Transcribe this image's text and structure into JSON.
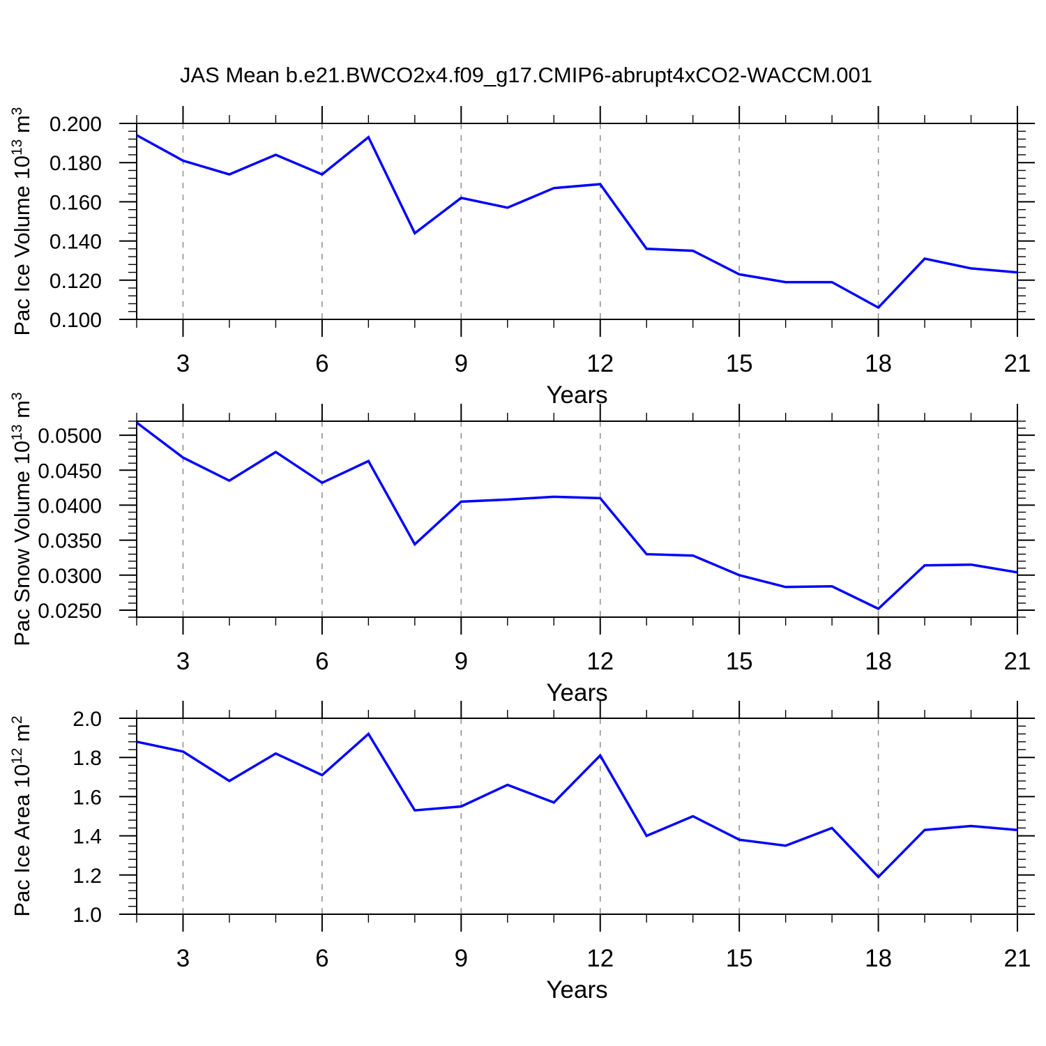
{
  "title": "JAS Mean b.e21.BWCO2x4.f09_g17.CMIP6-abrupt4xCO2-WACCM.001",
  "figure": {
    "background_color": "#ffffff",
    "line_color": "#0000ff",
    "frame_color": "#000000",
    "grid_color": "#8c8c8c",
    "grid_style": "vertical-dashed"
  },
  "chart_data": [
    {
      "type": "line",
      "ylabel_text": "Pac Ice Volume 10^13 m^3",
      "ylabel_parts": [
        {
          "text": "Pac Ice Volume 10",
          "sup": false
        },
        {
          "text": "13",
          "sup": true
        },
        {
          "text": " m",
          "sup": false
        },
        {
          "text": "3",
          "sup": true
        }
      ],
      "xlabel": "Years",
      "x": [
        2,
        3,
        4,
        5,
        6,
        7,
        8,
        9,
        10,
        11,
        12,
        13,
        14,
        15,
        16,
        17,
        18,
        19,
        20,
        21
      ],
      "values": [
        0.194,
        0.181,
        0.174,
        0.184,
        0.174,
        0.193,
        0.144,
        0.162,
        0.157,
        0.167,
        0.169,
        0.136,
        0.135,
        0.123,
        0.119,
        0.119,
        0.106,
        0.131,
        0.126,
        0.124
      ],
      "xlim": [
        2,
        21
      ],
      "ylim": [
        0.1,
        0.2
      ],
      "xtick_values": [
        3,
        6,
        9,
        12,
        15,
        18,
        21
      ],
      "xtick_labels": [
        "3",
        "6",
        "9",
        "12",
        "15",
        "18",
        "21"
      ],
      "x_minor_step": 1,
      "ytick_values": [
        0.1,
        0.12,
        0.14,
        0.16,
        0.18,
        0.2
      ],
      "ytick_labels": [
        "0.100",
        "0.120",
        "0.140",
        "0.160",
        "0.180",
        "0.200"
      ],
      "y_minor_step": 0.004,
      "grid_x": [
        3,
        6,
        9,
        12,
        15,
        18
      ],
      "line_color": "#0000ff",
      "legend": null
    },
    {
      "type": "line",
      "ylabel_text": "Pac Snow Volume 10^13 m^3",
      "ylabel_parts": [
        {
          "text": "Pac Snow Volume 10",
          "sup": false
        },
        {
          "text": "13",
          "sup": true
        },
        {
          "text": " m",
          "sup": false
        },
        {
          "text": "3",
          "sup": true
        }
      ],
      "xlabel": "Years",
      "x": [
        2,
        3,
        4,
        5,
        6,
        7,
        8,
        9,
        10,
        11,
        12,
        13,
        14,
        15,
        16,
        17,
        18,
        19,
        20,
        21
      ],
      "values": [
        0.0518,
        0.0468,
        0.0435,
        0.0476,
        0.0432,
        0.0463,
        0.0344,
        0.0405,
        0.0408,
        0.0412,
        0.041,
        0.033,
        0.0328,
        0.03,
        0.0283,
        0.0284,
        0.0252,
        0.0314,
        0.0315,
        0.0304
      ],
      "xlim": [
        2,
        21
      ],
      "ylim": [
        0.024,
        0.052
      ],
      "xtick_values": [
        3,
        6,
        9,
        12,
        15,
        18,
        21
      ],
      "xtick_labels": [
        "3",
        "6",
        "9",
        "12",
        "15",
        "18",
        "21"
      ],
      "x_minor_step": 1,
      "ytick_values": [
        0.025,
        0.03,
        0.035,
        0.04,
        0.045,
        0.05
      ],
      "ytick_labels": [
        "0.0250",
        "0.0300",
        "0.0350",
        "0.0400",
        "0.0450",
        "0.0500"
      ],
      "y_minor_step": 0.001,
      "grid_x": [
        3,
        6,
        9,
        12,
        15,
        18
      ],
      "line_color": "#0000ff",
      "legend": null
    },
    {
      "type": "line",
      "ylabel_text": "Pac Ice Area 10^12 m^2",
      "ylabel_parts": [
        {
          "text": "Pac Ice Area 10",
          "sup": false
        },
        {
          "text": "12",
          "sup": true
        },
        {
          "text": " m",
          "sup": false
        },
        {
          "text": "2",
          "sup": true
        }
      ],
      "xlabel": "Years",
      "x": [
        2,
        3,
        4,
        5,
        6,
        7,
        8,
        9,
        10,
        11,
        12,
        13,
        14,
        15,
        16,
        17,
        18,
        19,
        20,
        21
      ],
      "values": [
        1.88,
        1.83,
        1.68,
        1.82,
        1.71,
        1.92,
        1.53,
        1.55,
        1.66,
        1.57,
        1.81,
        1.4,
        1.5,
        1.38,
        1.35,
        1.44,
        1.19,
        1.43,
        1.45,
        1.43
      ],
      "xlim": [
        2,
        21
      ],
      "ylim": [
        1.0,
        2.0
      ],
      "xtick_values": [
        3,
        6,
        9,
        12,
        15,
        18,
        21
      ],
      "xtick_labels": [
        "3",
        "6",
        "9",
        "12",
        "15",
        "18",
        "21"
      ],
      "x_minor_step": 1,
      "ytick_values": [
        1.0,
        1.2,
        1.4,
        1.6,
        1.8,
        2.0
      ],
      "ytick_labels": [
        "1.0",
        "1.2",
        "1.4",
        "1.6",
        "1.8",
        "2.0"
      ],
      "y_minor_step": 0.04,
      "grid_x": [
        3,
        6,
        9,
        12,
        15,
        18
      ],
      "line_color": "#0000ff",
      "legend": null
    }
  ]
}
